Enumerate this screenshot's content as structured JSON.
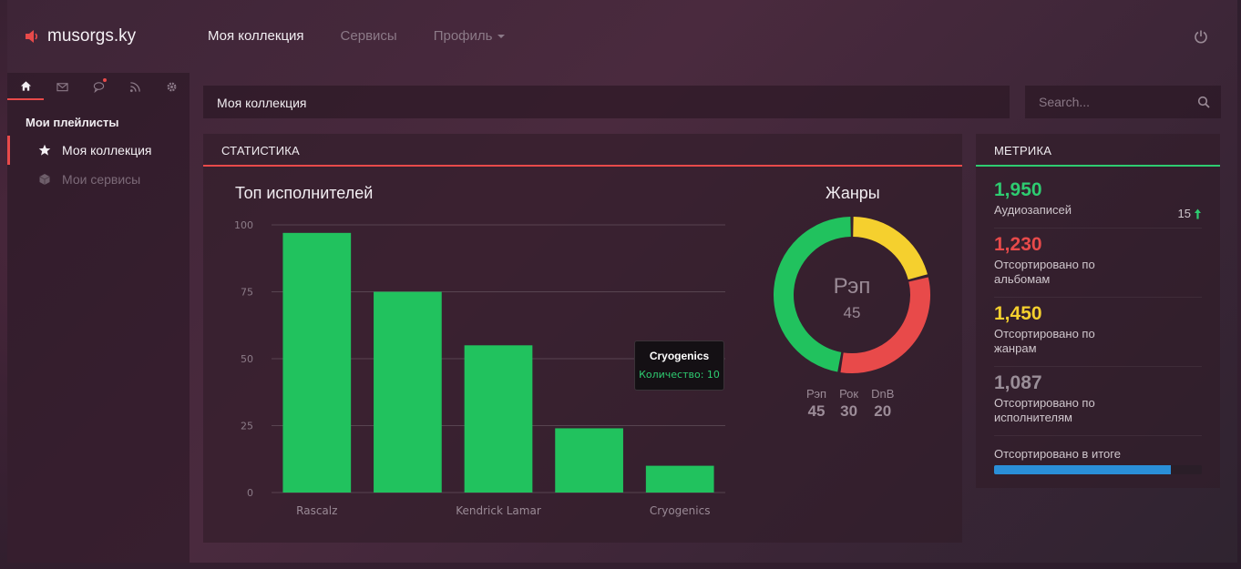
{
  "brand": {
    "name": "musorgs.ky",
    "icon": "speaker-icon",
    "color": "#e84a4a"
  },
  "nav": {
    "items": [
      {
        "label": "Моя коллекция",
        "active": true
      },
      {
        "label": "Сервисы",
        "active": false
      },
      {
        "label": "Профиль",
        "active": false,
        "dropdown": true
      }
    ]
  },
  "sidebar": {
    "tabs": [
      "home-icon",
      "mail-icon",
      "chat-icon",
      "rss-icon",
      "gear-icon"
    ],
    "title": "Мои плейлисты",
    "items": [
      {
        "label": "Моя коллекция",
        "icon": "star-icon",
        "active": true
      },
      {
        "label": "Мои сервисы",
        "icon": "cube-icon",
        "active": false
      }
    ]
  },
  "breadcrumb": "Моя коллекция",
  "search": {
    "placeholder": "Search..."
  },
  "stats": {
    "heading": "СТАТИСТИКА",
    "bar_title": "Топ исполнителей",
    "donut_title": "Жанры",
    "donut_center_label": "Рэп",
    "donut_center_value": "45",
    "tooltip": {
      "title": "Cryogenics",
      "text": "Количество: 10"
    }
  },
  "chart_data": [
    {
      "type": "bar",
      "title": "Топ исполнителей",
      "categories": [
        "Rascalz",
        "",
        "Kendrick Lamar",
        "",
        "Cryogenics"
      ],
      "values": [
        97,
        75,
        55,
        24,
        10
      ],
      "yticks": [
        0,
        25,
        50,
        75,
        100
      ],
      "ylim": [
        0,
        100
      ],
      "grid": true,
      "color": "#21c25e"
    },
    {
      "type": "pie",
      "title": "Жанры",
      "categories": [
        "Рэп",
        "Рок",
        "DnB"
      ],
      "values": [
        45,
        30,
        20
      ],
      "colors": [
        "#21c25e",
        "#e84a4a",
        "#f5d02e"
      ]
    }
  ],
  "metrics": {
    "heading": "МЕТРИКА",
    "items": [
      {
        "value": "1,950",
        "label": "Аудиозаписей",
        "color": "#2ecc71",
        "trend": "15"
      },
      {
        "value": "1,230",
        "label": "Отсортировано по альбомам",
        "color": "#e84a4a"
      },
      {
        "value": "1,450",
        "label": "Отсортировано по жанрам",
        "color": "#f5d02e"
      },
      {
        "value": "1,087",
        "label": "Отсортировано по исполнителям",
        "color": "#9a8e98"
      }
    ],
    "total_label": "Отсортировано в итоге",
    "total_progress": 0.85
  }
}
